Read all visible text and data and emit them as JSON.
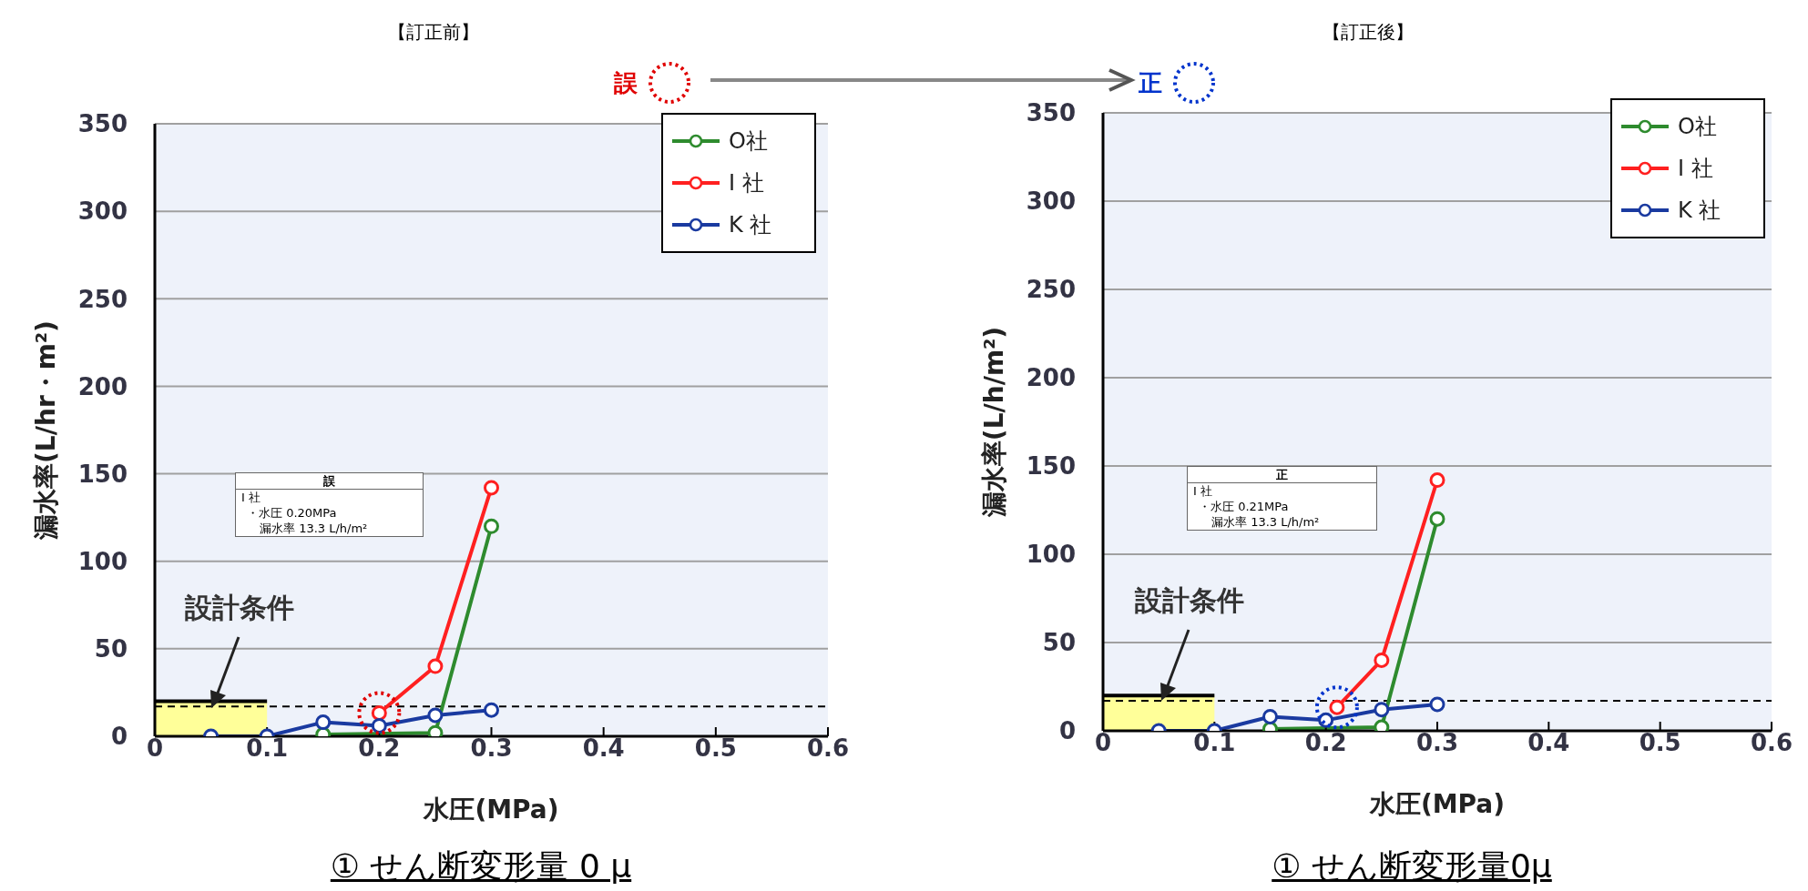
{
  "chart_data": [
    {
      "type": "line",
      "title": "【訂正前】",
      "subtitle": "① せん断変形量 0 μ",
      "xlabel": "水圧(MPa)",
      "ylabel": "漏水率(L/hr・m²)",
      "xlim": [
        0,
        0.6
      ],
      "xticks": [
        0,
        0.1,
        0.2,
        0.3,
        0.4,
        0.5,
        0.6
      ],
      "ylim": [
        0,
        350
      ],
      "yticks": [
        0,
        50,
        100,
        150,
        200,
        250,
        300,
        350
      ],
      "grid": "y",
      "legend": "top right",
      "marker": "circle",
      "series": [
        {
          "name": "O社",
          "color": "#2e8b2e",
          "x": [
            0.15,
            0.2,
            0.25,
            0.3
          ],
          "values": [
            1,
            null,
            2,
            120
          ]
        },
        {
          "name": "I 社",
          "color": "#ff2020",
          "x": [
            0.2,
            0.25,
            0.3
          ],
          "values": [
            13.3,
            40,
            142
          ]
        },
        {
          "name": "K 社",
          "color": "#1a3aa0",
          "x": [
            0.05,
            0.1,
            0.15,
            0.2,
            0.25,
            0.3
          ],
          "values": [
            0,
            0,
            8,
            6,
            12,
            15
          ]
        },
        {
          "type": "area",
          "color": "#ffff99",
          "marker": "none",
          "x": [
            0,
            0.1
          ],
          "values": [
            20,
            20
          ]
        }
      ],
      "ref_lines": [
        {
          "axis": "y",
          "value": 17,
          "color": "#000000",
          "line_style": "dashed"
        }
      ],
      "annotations": [
        "誤",
        "誤",
        "I 社",
        "・水圧 0.20MPa",
        "漏水率 13.3 L/h/m²",
        "設計条件"
      ]
    },
    {
      "type": "line",
      "title": "【訂正後】",
      "subtitle": "① せん断変形量0μ",
      "xlabel": "水圧(MPa)",
      "ylabel": "漏水率(L/h/m²)",
      "xlim": [
        0,
        0.6
      ],
      "xticks": [
        0,
        0.1,
        0.2,
        0.3,
        0.4,
        0.5,
        0.6
      ],
      "ylim": [
        0,
        350
      ],
      "yticks": [
        0,
        50,
        100,
        150,
        200,
        250,
        300,
        350
      ],
      "grid": "y",
      "legend": "top right",
      "marker": "circle",
      "series": [
        {
          "name": "O社",
          "color": "#2e8b2e",
          "x": [
            0.15,
            0.2,
            0.25,
            0.3
          ],
          "values": [
            1,
            null,
            2,
            120
          ]
        },
        {
          "name": "I 社",
          "color": "#ff2020",
          "x": [
            0.21,
            0.25,
            0.3
          ],
          "values": [
            13.3,
            40,
            142
          ]
        },
        {
          "name": "K 社",
          "color": "#1a3aa0",
          "x": [
            0.05,
            0.1,
            0.15,
            0.2,
            0.25,
            0.3
          ],
          "values": [
            0,
            0,
            8,
            6,
            12,
            15
          ]
        },
        {
          "type": "area",
          "color": "#ffff99",
          "marker": "none",
          "x": [
            0,
            0.1
          ],
          "values": [
            20,
            20
          ]
        }
      ],
      "ref_lines": [
        {
          "axis": "y",
          "value": 17,
          "color": "#000000",
          "line_style": "dashed"
        }
      ],
      "annotations": [
        "正",
        "正",
        "I 社",
        "・水圧 0.21MPa",
        "漏水率 13.3 L/h/m²",
        "設計条件"
      ]
    }
  ]
}
